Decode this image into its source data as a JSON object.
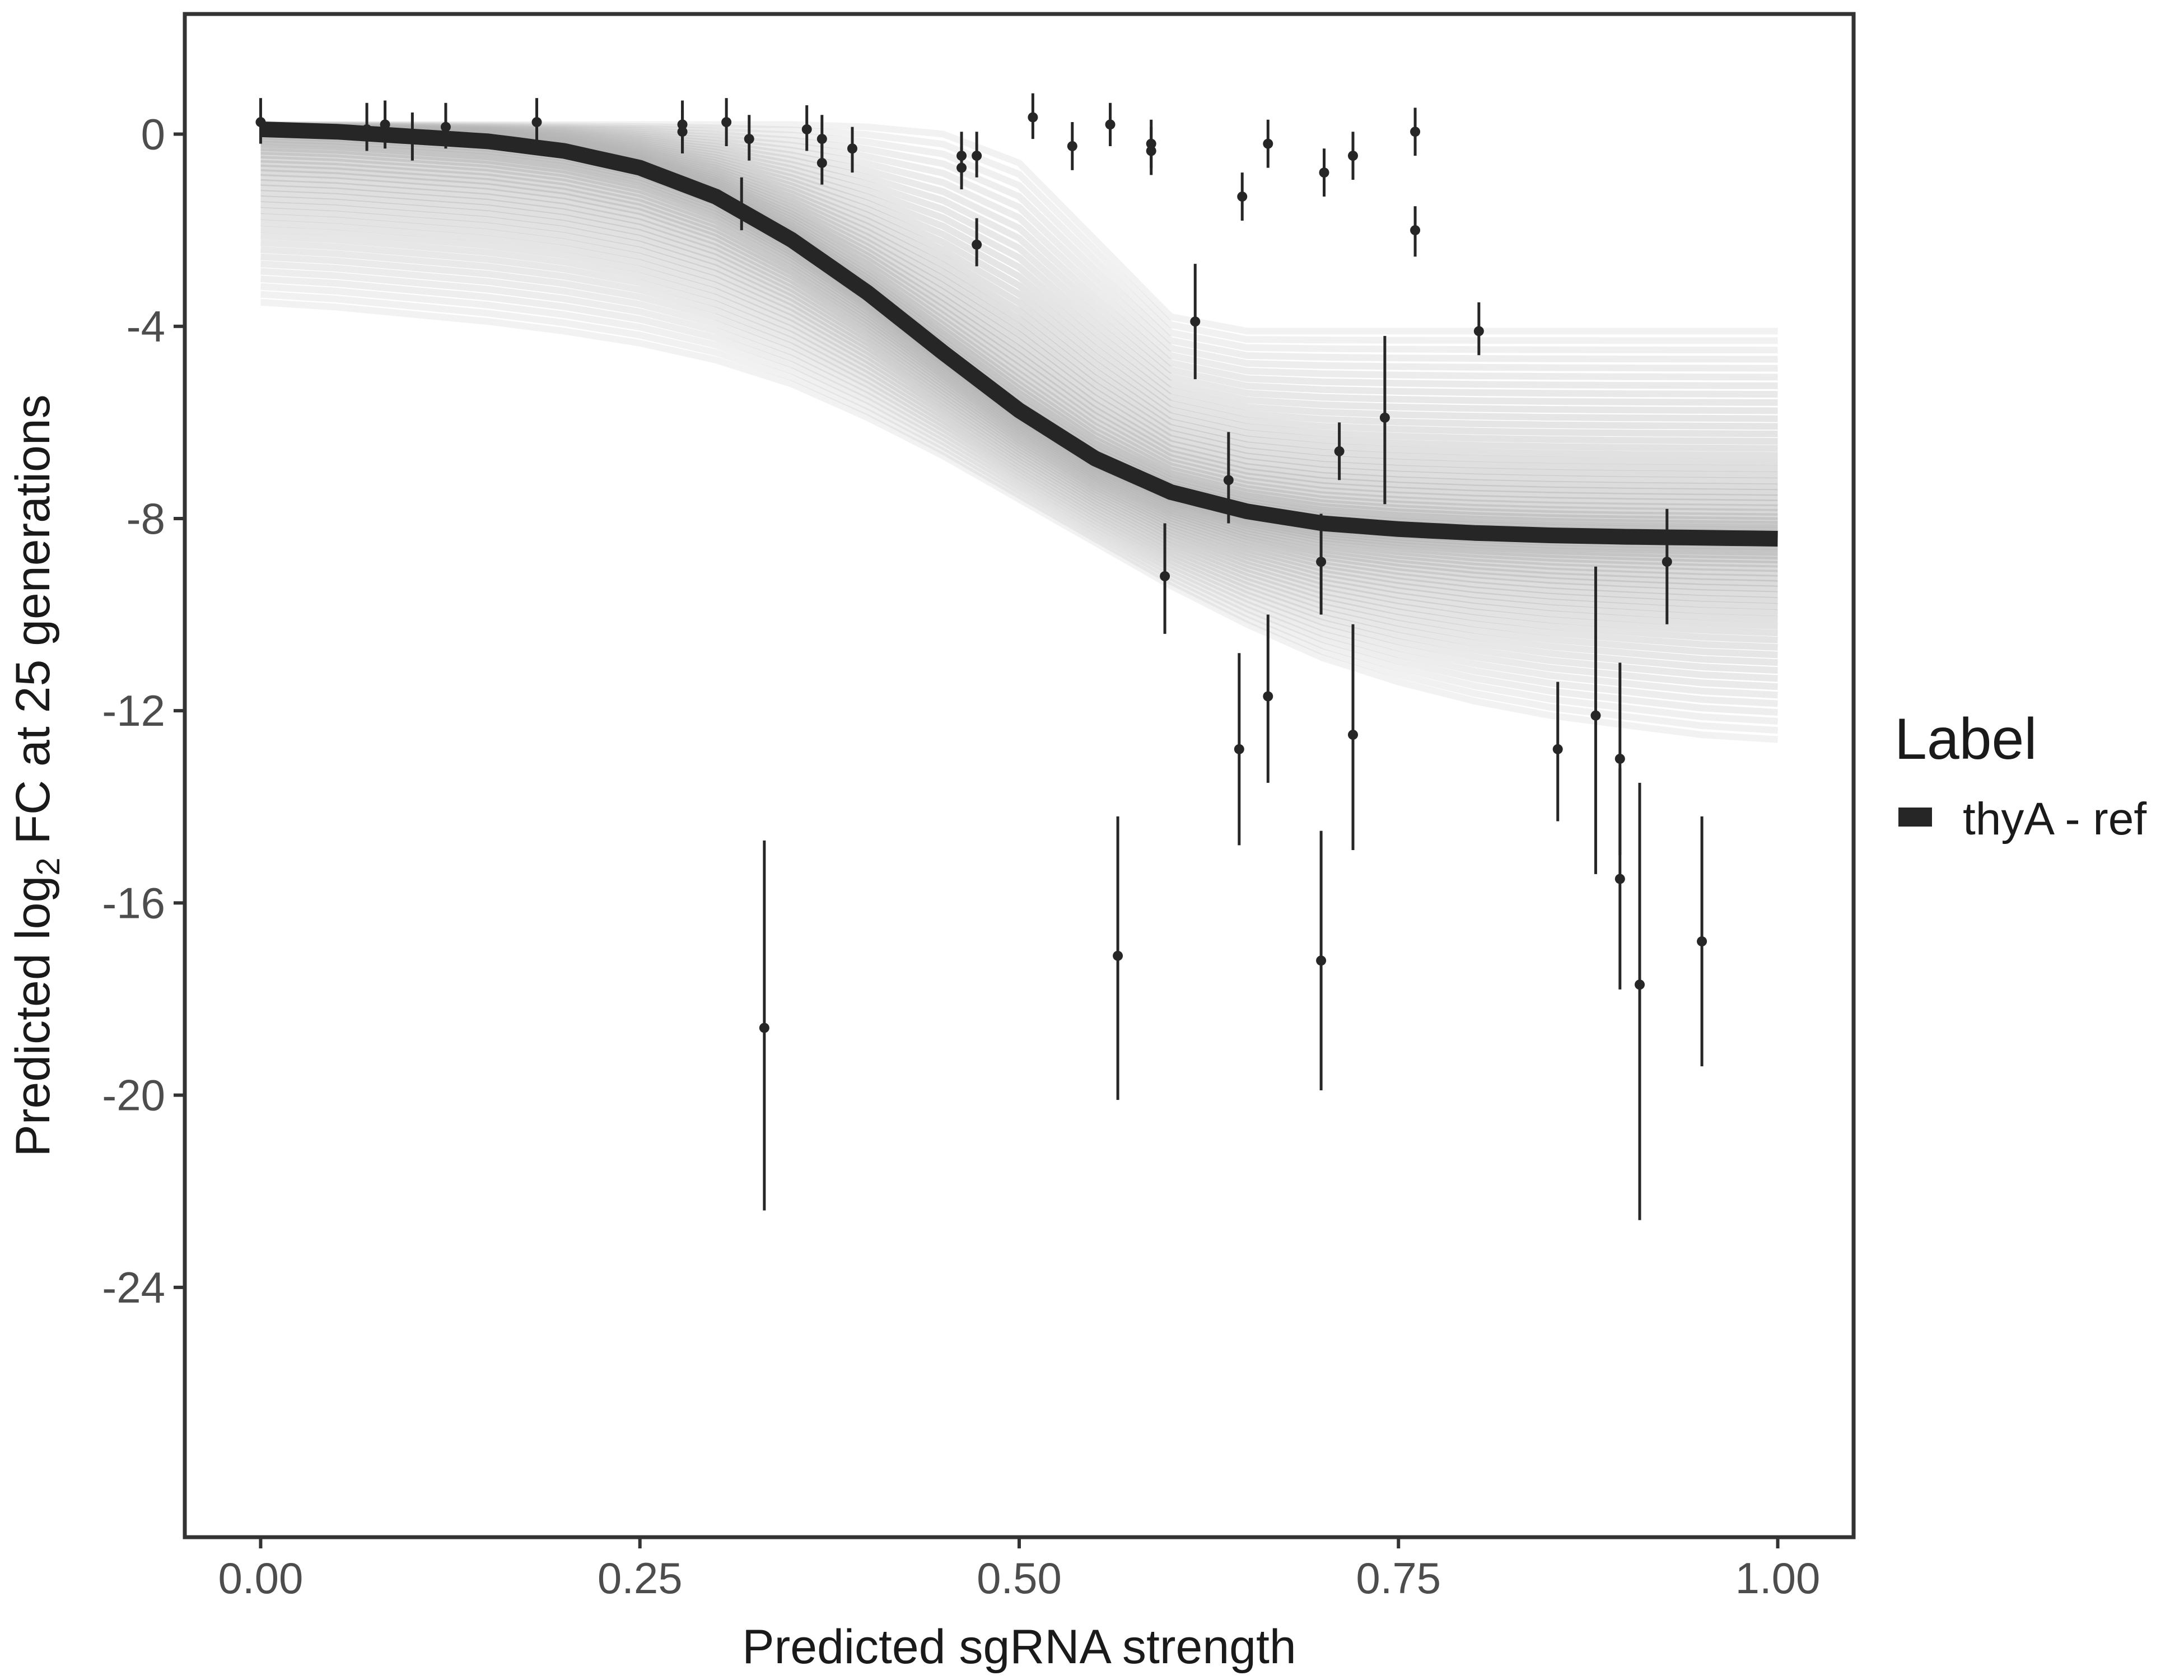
{
  "chart_data": {
    "type": "scatter",
    "title": "",
    "xlabel": "Predicted sgRNA strength",
    "ylabel": {
      "prefix": "Predicted  log",
      "subscript": "2",
      "suffix": " FC at 25 generations"
    },
    "xlim": [
      -0.05,
      1.05
    ],
    "ylim": [
      -29.2,
      2.5
    ],
    "x_ticks": [
      0.0,
      0.25,
      0.5,
      0.75,
      1.0
    ],
    "x_tick_labels": [
      "0.00",
      "0.25",
      "0.50",
      "0.75",
      "1.00"
    ],
    "y_ticks": [
      0,
      -4,
      -8,
      -12,
      -16,
      -20,
      -24
    ],
    "y_tick_labels": [
      "0",
      "-4",
      "-8",
      "-12",
      "-16",
      "-20",
      "-24"
    ],
    "grid": false,
    "legend": {
      "title": "Label",
      "position": "right",
      "entries": [
        {
          "label": "thyA - ref",
          "color": "#262626"
        }
      ]
    },
    "colors": {
      "fit_line": "#262626",
      "posterior_draws": "#b3b3b3",
      "points": "#262626"
    },
    "fit_curve": {
      "name": "thyA - ref",
      "x": [
        0.0,
        0.05,
        0.1,
        0.15,
        0.2,
        0.25,
        0.3,
        0.35,
        0.4,
        0.45,
        0.5,
        0.55,
        0.6,
        0.65,
        0.7,
        0.75,
        0.8,
        0.85,
        0.9,
        0.95,
        1.0
      ],
      "y": [
        0.1,
        0.05,
        -0.05,
        -0.15,
        -0.35,
        -0.7,
        -1.3,
        -2.2,
        -3.3,
        -4.55,
        -5.75,
        -6.75,
        -7.45,
        -7.85,
        -8.1,
        -8.22,
        -8.3,
        -8.35,
        -8.38,
        -8.4,
        -8.42
      ]
    },
    "posterior_draws_summary": {
      "x": [
        0.0,
        0.05,
        0.1,
        0.15,
        0.2,
        0.25,
        0.3,
        0.35,
        0.4,
        0.45,
        0.5,
        0.55,
        0.6,
        0.65,
        0.7,
        0.75,
        0.8,
        0.85,
        0.9,
        0.95,
        1.0
      ],
      "upper": [
        0.2,
        0.2,
        0.2,
        0.2,
        0.2,
        0.2,
        0.2,
        0.2,
        0.15,
        0.0,
        -0.6,
        -2.2,
        -3.8,
        -4.1,
        -4.1,
        -4.1,
        -4.1,
        -4.1,
        -4.1,
        -4.1,
        -4.1
      ],
      "lower": [
        -3.5,
        -3.6,
        -3.75,
        -3.9,
        -4.1,
        -4.35,
        -4.7,
        -5.2,
        -5.9,
        -6.7,
        -7.6,
        -8.5,
        -9.4,
        -10.2,
        -10.9,
        -11.4,
        -11.8,
        -12.1,
        -12.3,
        -12.5,
        -12.6
      ]
    },
    "points": [
      {
        "x": 0.0,
        "y": 0.25,
        "lo": -0.2,
        "hi": 0.75
      },
      {
        "x": 0.07,
        "y": 0.1,
        "lo": -0.35,
        "hi": 0.65
      },
      {
        "x": 0.082,
        "y": 0.2,
        "lo": -0.3,
        "hi": 0.7
      },
      {
        "x": 0.1,
        "y": -0.05,
        "lo": -0.55,
        "hi": 0.45
      },
      {
        "x": 0.122,
        "y": 0.15,
        "lo": -0.3,
        "hi": 0.65
      },
      {
        "x": 0.182,
        "y": 0.25,
        "lo": -0.25,
        "hi": 0.75
      },
      {
        "x": 0.278,
        "y": 0.2,
        "lo": -0.4,
        "hi": 0.7
      },
      {
        "x": 0.278,
        "y": 0.05,
        "lo": -0.4,
        "hi": 0.5
      },
      {
        "x": 0.307,
        "y": 0.25,
        "lo": -0.25,
        "hi": 0.75
      },
      {
        "x": 0.317,
        "y": -1.6,
        "lo": -2.0,
        "hi": -0.9
      },
      {
        "x": 0.322,
        "y": -0.1,
        "lo": -0.55,
        "hi": 0.4
      },
      {
        "x": 0.332,
        "y": -18.6,
        "lo": -22.4,
        "hi": -14.7
      },
      {
        "x": 0.36,
        "y": 0.1,
        "lo": -0.35,
        "hi": 0.6
      },
      {
        "x": 0.37,
        "y": -0.6,
        "lo": -1.05,
        "hi": -0.1
      },
      {
        "x": 0.37,
        "y": -0.1,
        "lo": -0.5,
        "hi": 0.4
      },
      {
        "x": 0.39,
        "y": -0.3,
        "lo": -0.8,
        "hi": 0.15
      },
      {
        "x": 0.462,
        "y": -0.7,
        "lo": -1.15,
        "hi": -0.25
      },
      {
        "x": 0.462,
        "y": -0.45,
        "lo": -0.9,
        "hi": 0.05
      },
      {
        "x": 0.472,
        "y": -2.3,
        "lo": -2.75,
        "hi": -1.75
      },
      {
        "x": 0.472,
        "y": -0.45,
        "lo": -0.9,
        "hi": 0.05
      },
      {
        "x": 0.509,
        "y": 0.35,
        "lo": -0.1,
        "hi": 0.85
      },
      {
        "x": 0.535,
        "y": -0.25,
        "lo": -0.75,
        "hi": 0.25
      },
      {
        "x": 0.56,
        "y": 0.2,
        "lo": -0.25,
        "hi": 0.65
      },
      {
        "x": 0.565,
        "y": -17.1,
        "lo": -20.1,
        "hi": -14.2
      },
      {
        "x": 0.587,
        "y": -0.2,
        "lo": -0.7,
        "hi": 0.3
      },
      {
        "x": 0.587,
        "y": -0.35,
        "lo": -0.85,
        "hi": 0.15
      },
      {
        "x": 0.596,
        "y": -9.2,
        "lo": -10.4,
        "hi": -8.1
      },
      {
        "x": 0.616,
        "y": -3.9,
        "lo": -5.1,
        "hi": -2.7
      },
      {
        "x": 0.638,
        "y": -7.2,
        "lo": -8.1,
        "hi": -6.2
      },
      {
        "x": 0.645,
        "y": -12.8,
        "lo": -14.8,
        "hi": -10.8
      },
      {
        "x": 0.647,
        "y": -1.3,
        "lo": -1.8,
        "hi": -0.8
      },
      {
        "x": 0.664,
        "y": -11.7,
        "lo": -13.5,
        "hi": -10.0
      },
      {
        "x": 0.664,
        "y": -0.2,
        "lo": -0.7,
        "hi": 0.3
      },
      {
        "x": 0.699,
        "y": -8.9,
        "lo": -10.0,
        "hi": -7.9
      },
      {
        "x": 0.699,
        "y": -17.2,
        "lo": -19.9,
        "hi": -14.5
      },
      {
        "x": 0.701,
        "y": -0.8,
        "lo": -1.3,
        "hi": -0.3
      },
      {
        "x": 0.711,
        "y": -6.6,
        "lo": -7.2,
        "hi": -6.0
      },
      {
        "x": 0.72,
        "y": -12.5,
        "lo": -14.9,
        "hi": -10.2
      },
      {
        "x": 0.72,
        "y": -0.45,
        "lo": -0.95,
        "hi": 0.05
      },
      {
        "x": 0.741,
        "y": -5.9,
        "lo": -7.7,
        "hi": -4.2
      },
      {
        "x": 0.761,
        "y": 0.05,
        "lo": -0.45,
        "hi": 0.55
      },
      {
        "x": 0.761,
        "y": -2.0,
        "lo": -2.55,
        "hi": -1.5
      },
      {
        "x": 0.803,
        "y": -4.1,
        "lo": -4.6,
        "hi": -3.5
      },
      {
        "x": 0.855,
        "y": -12.8,
        "lo": -14.3,
        "hi": -11.4
      },
      {
        "x": 0.88,
        "y": -12.1,
        "lo": -15.4,
        "hi": -9.0
      },
      {
        "x": 0.896,
        "y": -13.0,
        "lo": -15.0,
        "hi": -11.0
      },
      {
        "x": 0.896,
        "y": -15.5,
        "lo": -17.8,
        "hi": -13.2
      },
      {
        "x": 0.909,
        "y": -17.7,
        "lo": -22.6,
        "hi": -13.5
      },
      {
        "x": 0.927,
        "y": -8.9,
        "lo": -10.2,
        "hi": -7.8
      },
      {
        "x": 0.95,
        "y": -16.8,
        "lo": -19.4,
        "hi": -14.2
      }
    ]
  }
}
